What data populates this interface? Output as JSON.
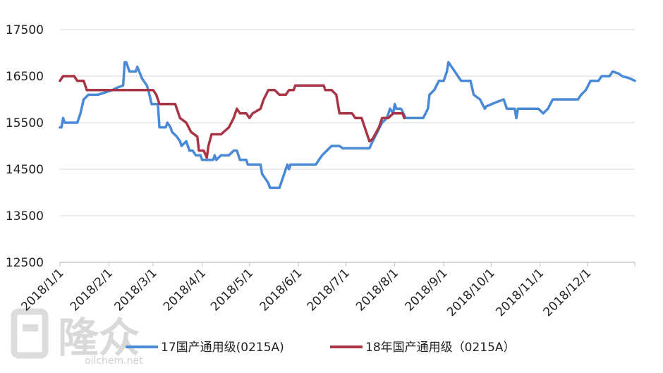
{
  "watermark": {
    "logo_text": "隆众",
    "url": "oilchem.net"
  },
  "chart_data": {
    "type": "line",
    "title": "",
    "xlabel": "",
    "ylabel": "",
    "ylim": [
      12500,
      17500
    ],
    "yticks": [
      12500,
      13500,
      14500,
      15500,
      16500,
      17500
    ],
    "xlim": [
      "2018-01-01",
      "2018-12-31"
    ],
    "xticks": [
      "2018/1/1",
      "2018/2/1",
      "2018/3/1",
      "2018/4/1",
      "2018/5/1",
      "2018/6/1",
      "2018/7/1",
      "2018/8/1",
      "2018/9/1",
      "2018/10/1",
      "2018/11/1",
      "2018/12/1"
    ],
    "grid": true,
    "legend_position": "bottom",
    "series": [
      {
        "name": "17国产通用级(0215A)",
        "color": "#4a89d6",
        "points": [
          [
            "2018-01-01",
            15400
          ],
          [
            "2018-01-02",
            15400
          ],
          [
            "2018-01-03",
            15600
          ],
          [
            "2018-01-04",
            15500
          ],
          [
            "2018-01-08",
            15500
          ],
          [
            "2018-01-12",
            15500
          ],
          [
            "2018-01-14",
            15700
          ],
          [
            "2018-01-16",
            16000
          ],
          [
            "2018-01-19",
            16100
          ],
          [
            "2018-01-25",
            16100
          ],
          [
            "2018-02-03",
            16200
          ],
          [
            "2018-02-06",
            16250
          ],
          [
            "2018-02-10",
            16300
          ],
          [
            "2018-02-11",
            16800
          ],
          [
            "2018-02-12",
            16800
          ],
          [
            "2018-02-14",
            16600
          ],
          [
            "2018-02-18",
            16600
          ],
          [
            "2018-02-19",
            16700
          ],
          [
            "2018-02-22",
            16450
          ],
          [
            "2018-02-25",
            16300
          ],
          [
            "2018-02-26",
            16200
          ],
          [
            "2018-02-28",
            15900
          ],
          [
            "2018-03-04",
            15900
          ],
          [
            "2018-03-05",
            15400
          ],
          [
            "2018-03-09",
            15400
          ],
          [
            "2018-03-10",
            15500
          ],
          [
            "2018-03-12",
            15400
          ],
          [
            "2018-03-13",
            15300
          ],
          [
            "2018-03-16",
            15200
          ],
          [
            "2018-03-18",
            15100
          ],
          [
            "2018-03-19",
            15000
          ],
          [
            "2018-03-22",
            15100
          ],
          [
            "2018-03-24",
            14900
          ],
          [
            "2018-03-26",
            14900
          ],
          [
            "2018-03-28",
            14800
          ],
          [
            "2018-03-31",
            14800
          ],
          [
            "2018-04-01",
            14700
          ],
          [
            "2018-04-08",
            14700
          ],
          [
            "2018-04-09",
            14800
          ],
          [
            "2018-04-10",
            14700
          ],
          [
            "2018-04-13",
            14800
          ],
          [
            "2018-04-18",
            14800
          ],
          [
            "2018-04-21",
            14900
          ],
          [
            "2018-04-23",
            14900
          ],
          [
            "2018-04-25",
            14700
          ],
          [
            "2018-04-29",
            14700
          ],
          [
            "2018-04-30",
            14600
          ],
          [
            "2018-05-08",
            14600
          ],
          [
            "2018-05-09",
            14400
          ],
          [
            "2018-05-11",
            14300
          ],
          [
            "2018-05-13",
            14200
          ],
          [
            "2018-05-14",
            14100
          ],
          [
            "2018-05-20",
            14100
          ],
          [
            "2018-05-22",
            14300
          ],
          [
            "2018-05-25",
            14600
          ],
          [
            "2018-05-26",
            14500
          ],
          [
            "2018-05-27",
            14600
          ],
          [
            "2018-06-12",
            14600
          ],
          [
            "2018-06-16",
            14800
          ],
          [
            "2018-06-19",
            14900
          ],
          [
            "2018-06-22",
            15000
          ],
          [
            "2018-06-27",
            15000
          ],
          [
            "2018-06-29",
            14950
          ],
          [
            "2018-07-16",
            14950
          ],
          [
            "2018-07-18",
            15100
          ],
          [
            "2018-07-21",
            15300
          ],
          [
            "2018-07-24",
            15500
          ],
          [
            "2018-07-27",
            15600
          ],
          [
            "2018-07-29",
            15800
          ],
          [
            "2018-07-31",
            15700
          ],
          [
            "2018-08-01",
            15900
          ],
          [
            "2018-08-02",
            15800
          ],
          [
            "2018-08-05",
            15800
          ],
          [
            "2018-08-08",
            15600
          ],
          [
            "2018-08-15",
            15600
          ],
          [
            "2018-08-19",
            15600
          ],
          [
            "2018-08-22",
            15800
          ],
          [
            "2018-08-23",
            16100
          ],
          [
            "2018-08-26",
            16200
          ],
          [
            "2018-08-29",
            16400
          ],
          [
            "2018-09-01",
            16400
          ],
          [
            "2018-09-03",
            16600
          ],
          [
            "2018-09-04",
            16800
          ],
          [
            "2018-09-06",
            16700
          ],
          [
            "2018-09-08",
            16600
          ],
          [
            "2018-09-10",
            16500
          ],
          [
            "2018-09-12",
            16400
          ],
          [
            "2018-09-18",
            16400
          ],
          [
            "2018-09-20",
            16100
          ],
          [
            "2018-09-24",
            16000
          ],
          [
            "2018-09-27",
            15800
          ],
          [
            "2018-09-28",
            15850
          ],
          [
            "2018-10-05",
            15950
          ],
          [
            "2018-10-09",
            16000
          ],
          [
            "2018-10-11",
            15800
          ],
          [
            "2018-10-16",
            15800
          ],
          [
            "2018-10-17",
            15600
          ],
          [
            "2018-10-18",
            15800
          ],
          [
            "2018-10-31",
            15800
          ],
          [
            "2018-11-03",
            15700
          ],
          [
            "2018-11-06",
            15800
          ],
          [
            "2018-11-09",
            16000
          ],
          [
            "2018-11-25",
            16000
          ],
          [
            "2018-11-27",
            16100
          ],
          [
            "2018-11-30",
            16200
          ],
          [
            "2018-12-03",
            16400
          ],
          [
            "2018-12-08",
            16400
          ],
          [
            "2018-12-10",
            16500
          ],
          [
            "2018-12-15",
            16500
          ],
          [
            "2018-12-17",
            16600
          ],
          [
            "2018-12-21",
            16550
          ],
          [
            "2018-12-23",
            16500
          ],
          [
            "2018-12-28",
            16450
          ],
          [
            "2018-12-31",
            16400
          ]
        ]
      },
      {
        "name": "18年国产通用级（0215A）",
        "color": "#a83446",
        "points": [
          [
            "2018-01-01",
            16400
          ],
          [
            "2018-01-03",
            16500
          ],
          [
            "2018-01-10",
            16500
          ],
          [
            "2018-01-12",
            16400
          ],
          [
            "2018-01-16",
            16400
          ],
          [
            "2018-01-18",
            16200
          ],
          [
            "2018-03-01",
            16200
          ],
          [
            "2018-03-03",
            16100
          ],
          [
            "2018-03-04",
            16000
          ],
          [
            "2018-03-05",
            15900
          ],
          [
            "2018-03-15",
            15900
          ],
          [
            "2018-03-18",
            15600
          ],
          [
            "2018-03-22",
            15500
          ],
          [
            "2018-03-25",
            15300
          ],
          [
            "2018-03-29",
            15200
          ],
          [
            "2018-03-30",
            14900
          ],
          [
            "2018-04-02",
            14900
          ],
          [
            "2018-04-04",
            14750
          ],
          [
            "2018-04-05",
            15000
          ],
          [
            "2018-04-07",
            15250
          ],
          [
            "2018-04-13",
            15250
          ],
          [
            "2018-04-18",
            15400
          ],
          [
            "2018-04-21",
            15600
          ],
          [
            "2018-04-23",
            15800
          ],
          [
            "2018-04-25",
            15700
          ],
          [
            "2018-04-29",
            15700
          ],
          [
            "2018-05-01",
            15600
          ],
          [
            "2018-05-03",
            15700
          ],
          [
            "2018-05-08",
            15800
          ],
          [
            "2018-05-10",
            16000
          ],
          [
            "2018-05-13",
            16200
          ],
          [
            "2018-05-17",
            16200
          ],
          [
            "2018-05-20",
            16100
          ],
          [
            "2018-05-24",
            16100
          ],
          [
            "2018-05-26",
            16200
          ],
          [
            "2018-05-29",
            16200
          ],
          [
            "2018-05-30",
            16300
          ],
          [
            "2018-06-17",
            16300
          ],
          [
            "2018-06-18",
            16200
          ],
          [
            "2018-06-22",
            16200
          ],
          [
            "2018-06-25",
            16100
          ],
          [
            "2018-06-27",
            15700
          ],
          [
            "2018-07-05",
            15700
          ],
          [
            "2018-07-07",
            15600
          ],
          [
            "2018-07-11",
            15600
          ],
          [
            "2018-07-15",
            15200
          ],
          [
            "2018-07-16",
            15100
          ],
          [
            "2018-07-18",
            15150
          ],
          [
            "2018-07-22",
            15400
          ],
          [
            "2018-07-24",
            15600
          ],
          [
            "2018-07-28",
            15600
          ],
          [
            "2018-07-31",
            15700
          ],
          [
            "2018-08-06",
            15700
          ],
          [
            "2018-08-07",
            15600
          ]
        ]
      }
    ]
  }
}
